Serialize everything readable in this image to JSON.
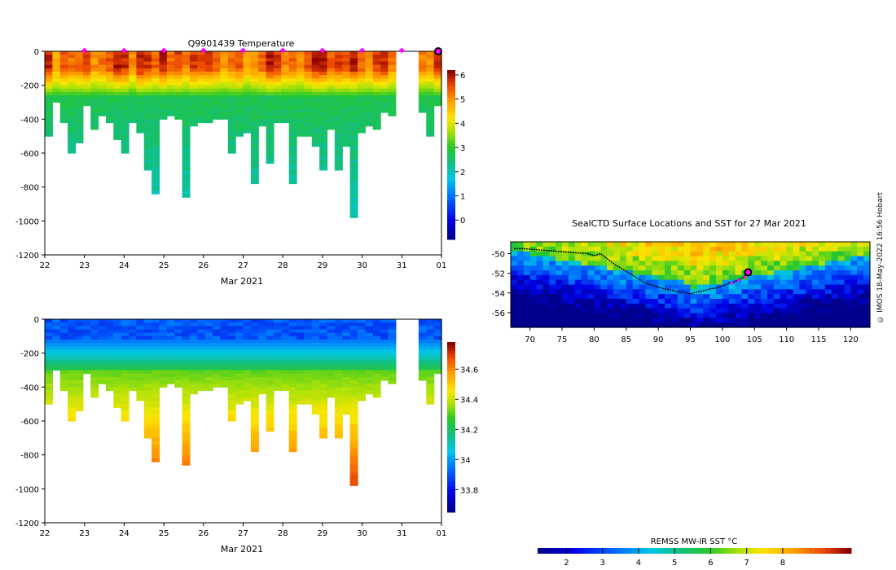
{
  "stamp_text": "© IMOS 18-May-2022 16:56 Hobart",
  "chart_data": [
    {
      "id": "temperature",
      "type": "heatmap",
      "title": "Q9901439  Temperature",
      "xlabel": "Mar 2021",
      "ylabel": "",
      "x_tick_labels": [
        "22",
        "23",
        "24",
        "25",
        "26",
        "27",
        "28",
        "29",
        "30",
        "31",
        "01"
      ],
      "xlim": [
        22,
        32
      ],
      "ylim": [
        -1200,
        0
      ],
      "y_ticks": [
        0,
        -200,
        -400,
        -600,
        -800,
        -1000,
        -1200
      ],
      "colorbar": {
        "ticks": [
          0,
          1,
          2,
          3,
          4,
          5,
          6
        ],
        "range": [
          -0.8,
          6.2
        ]
      },
      "profile_markers_x": [
        23,
        24,
        25,
        26,
        27,
        28,
        29,
        30,
        31
      ],
      "current_marker_x": 32,
      "profile_max_depths": [
        500,
        300,
        420,
        600,
        530,
        320,
        460,
        380,
        420,
        520,
        600,
        420,
        470,
        700,
        840,
        400,
        380,
        400,
        860,
        440,
        410,
        410,
        400,
        400,
        590,
        500,
        470,
        780,
        440,
        660,
        420,
        410,
        770,
        490,
        490,
        550,
        690,
        450,
        700,
        560,
        980,
        480,
        430,
        460,
        360,
        380,
        0,
        0,
        0,
        360,
        500,
        320
      ]
    },
    {
      "id": "salinity",
      "type": "heatmap",
      "title": "",
      "xlabel": "Mar 2021",
      "ylabel": "",
      "x_tick_labels": [
        "22",
        "23",
        "24",
        "25",
        "26",
        "27",
        "28",
        "29",
        "30",
        "31",
        "01"
      ],
      "xlim": [
        22,
        32
      ],
      "ylim": [
        -1200,
        0
      ],
      "y_ticks": [
        0,
        -200,
        -400,
        -600,
        -800,
        -1000,
        -1200
      ],
      "colorbar": {
        "ticks": [
          33.8,
          34,
          34.2,
          34.4,
          34.6
        ],
        "range": [
          33.65,
          34.78
        ]
      },
      "profile_max_depths": [
        500,
        300,
        420,
        600,
        530,
        320,
        460,
        380,
        420,
        520,
        600,
        420,
        470,
        700,
        840,
        400,
        380,
        400,
        860,
        440,
        410,
        410,
        400,
        400,
        590,
        500,
        470,
        780,
        440,
        660,
        420,
        410,
        770,
        490,
        490,
        550,
        690,
        450,
        700,
        560,
        980,
        480,
        430,
        460,
        360,
        380,
        0,
        0,
        0,
        360,
        500,
        320
      ]
    },
    {
      "id": "sst-map",
      "type": "heatmap",
      "title": "SealCTD Surface Locations and SST for 27 Mar 2021",
      "x_tick_labels": [
        "70",
        "75",
        "80",
        "85",
        "90",
        "95",
        "100",
        "105",
        "110",
        "115",
        "120"
      ],
      "y_tick_labels": [
        "-50",
        "-52",
        "-54",
        "-56"
      ],
      "xlim": [
        67,
        123
      ],
      "ylim": [
        -57.5,
        -48.8
      ],
      "track_lon": [
        67.5,
        69,
        71,
        73,
        75,
        77,
        79,
        80,
        81,
        82,
        83,
        84,
        85,
        86,
        87,
        88,
        89,
        90,
        91,
        92,
        93,
        94,
        95,
        96,
        97,
        98,
        99,
        100,
        101,
        102,
        103,
        104
      ],
      "track_lat": [
        -49.5,
        -49.5,
        -49.6,
        -49.7,
        -49.8,
        -49.9,
        -50.0,
        -50.2,
        -50.0,
        -50.5,
        -51.0,
        -51.4,
        -51.8,
        -52.2,
        -52.6,
        -53.0,
        -53.2,
        -53.4,
        -53.6,
        -53.7,
        -53.9,
        -53.9,
        -54.1,
        -53.9,
        -53.8,
        -53.6,
        -53.5,
        -53.3,
        -53.0,
        -52.8,
        -52.5,
        -52.0
      ],
      "recent_lon": [
        101.5,
        102.5,
        103.5
      ],
      "recent_lat": [
        -53.0,
        -52.7,
        -52.4
      ],
      "current_lon": 104,
      "current_lat": -51.9,
      "colorbar": {
        "label": "REMSS MW-IR SST °C",
        "ticks": [
          2,
          3,
          4,
          5,
          6,
          7,
          8
        ],
        "range": [
          1.2,
          9.9
        ]
      }
    }
  ]
}
